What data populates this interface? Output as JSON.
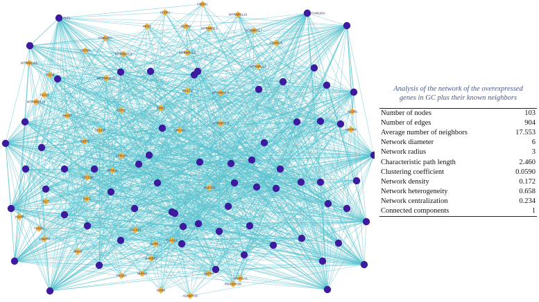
{
  "network": {
    "colors": {
      "edge": "#5bc3cf",
      "hub": "#3d1b9e",
      "gene": "#f5b83d"
    },
    "labels": [
      "CFDP1",
      "CMSS1",
      "MTRNR2L10",
      "KIF23",
      "ADTRP",
      "MTRNR2L1",
      "MTRNR2L7",
      "C1orf226",
      "FAM106A",
      "CEP55",
      "MTRNR2L3",
      "MTRNR2L8",
      "MTRNR2L6",
      "MTRNR2L5",
      "ITGA4",
      "MTRNR2L11",
      "FGA3",
      "MALT2",
      "MTRNR2L4",
      "MTRNR2L12",
      "MKI67",
      "CDH1",
      "PMEL",
      "CCLDP",
      "SPCAM",
      "MTRNR2L9",
      "IGBP1",
      "GPR143",
      "MAPK6",
      "KPNA2",
      "SEC23A",
      "NUP153",
      "TAF1",
      "DCT",
      "ADAR",
      "TYRP1",
      "EIF4G1",
      "SEC61A",
      "AURKA",
      "RANBP2",
      "NUP62",
      "THADA",
      "NUP54",
      "SMARCA1",
      "CANX",
      "ADAMTS9",
      "RNASEH2B",
      "DNA2",
      "C9orf72",
      "ALDH1",
      "TLE1",
      "FAM126A"
    ]
  },
  "stats": {
    "caption_line1": "Analysis of the network of the overexpressed",
    "caption_line2": "genes in GC plus their known neighbors",
    "rows": [
      {
        "label": "Number of nodes",
        "value": "103"
      },
      {
        "label": "Number of edges",
        "value": "904"
      },
      {
        "label": "Average number of neighbors",
        "value": "17.553"
      },
      {
        "label": "Network diameter",
        "value": "6"
      },
      {
        "label": "Network radius",
        "value": "3"
      },
      {
        "label": "Characteristic path length",
        "value": "2.460"
      },
      {
        "label": "Clustering  coefficient",
        "value": "0.0590"
      },
      {
        "label": "Network density",
        "value": "0.172"
      },
      {
        "label": "Network heterogeneity",
        "value": "0.658"
      },
      {
        "label": "Network centralization",
        "value": "0.234"
      },
      {
        "label": "Connected components",
        "value": "1"
      }
    ]
  }
}
